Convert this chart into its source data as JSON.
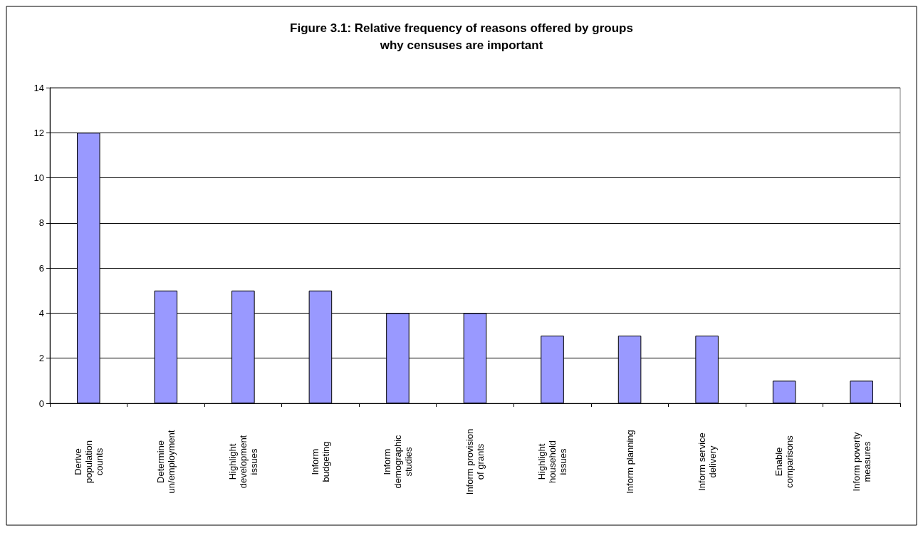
{
  "chart_data": {
    "type": "bar",
    "title": "Figure 3.1: Relative frequency of reasons offered by groups\nwhy censuses are important",
    "categories": [
      "Derive\npopulation\ncounts",
      "Determine\nun/employment",
      "Highlight\ndevelopment\nissues",
      "Inform\nbudgeting",
      "Inform\ndemographic\nstudies",
      "Inform provision\nof grants",
      "Highlight\nhousehold\nissues",
      "Inform planning",
      "Inform service\ndelivery",
      "Enable\ncomparisons",
      "Inform poverty\nmeasures"
    ],
    "values": [
      12,
      5,
      5,
      5,
      4,
      4,
      3,
      3,
      3,
      1,
      1
    ],
    "color": "#9999ff",
    "ylim": [
      0,
      14
    ],
    "yticks": [
      0,
      2,
      4,
      6,
      8,
      10,
      12,
      14
    ],
    "grid": "y"
  }
}
